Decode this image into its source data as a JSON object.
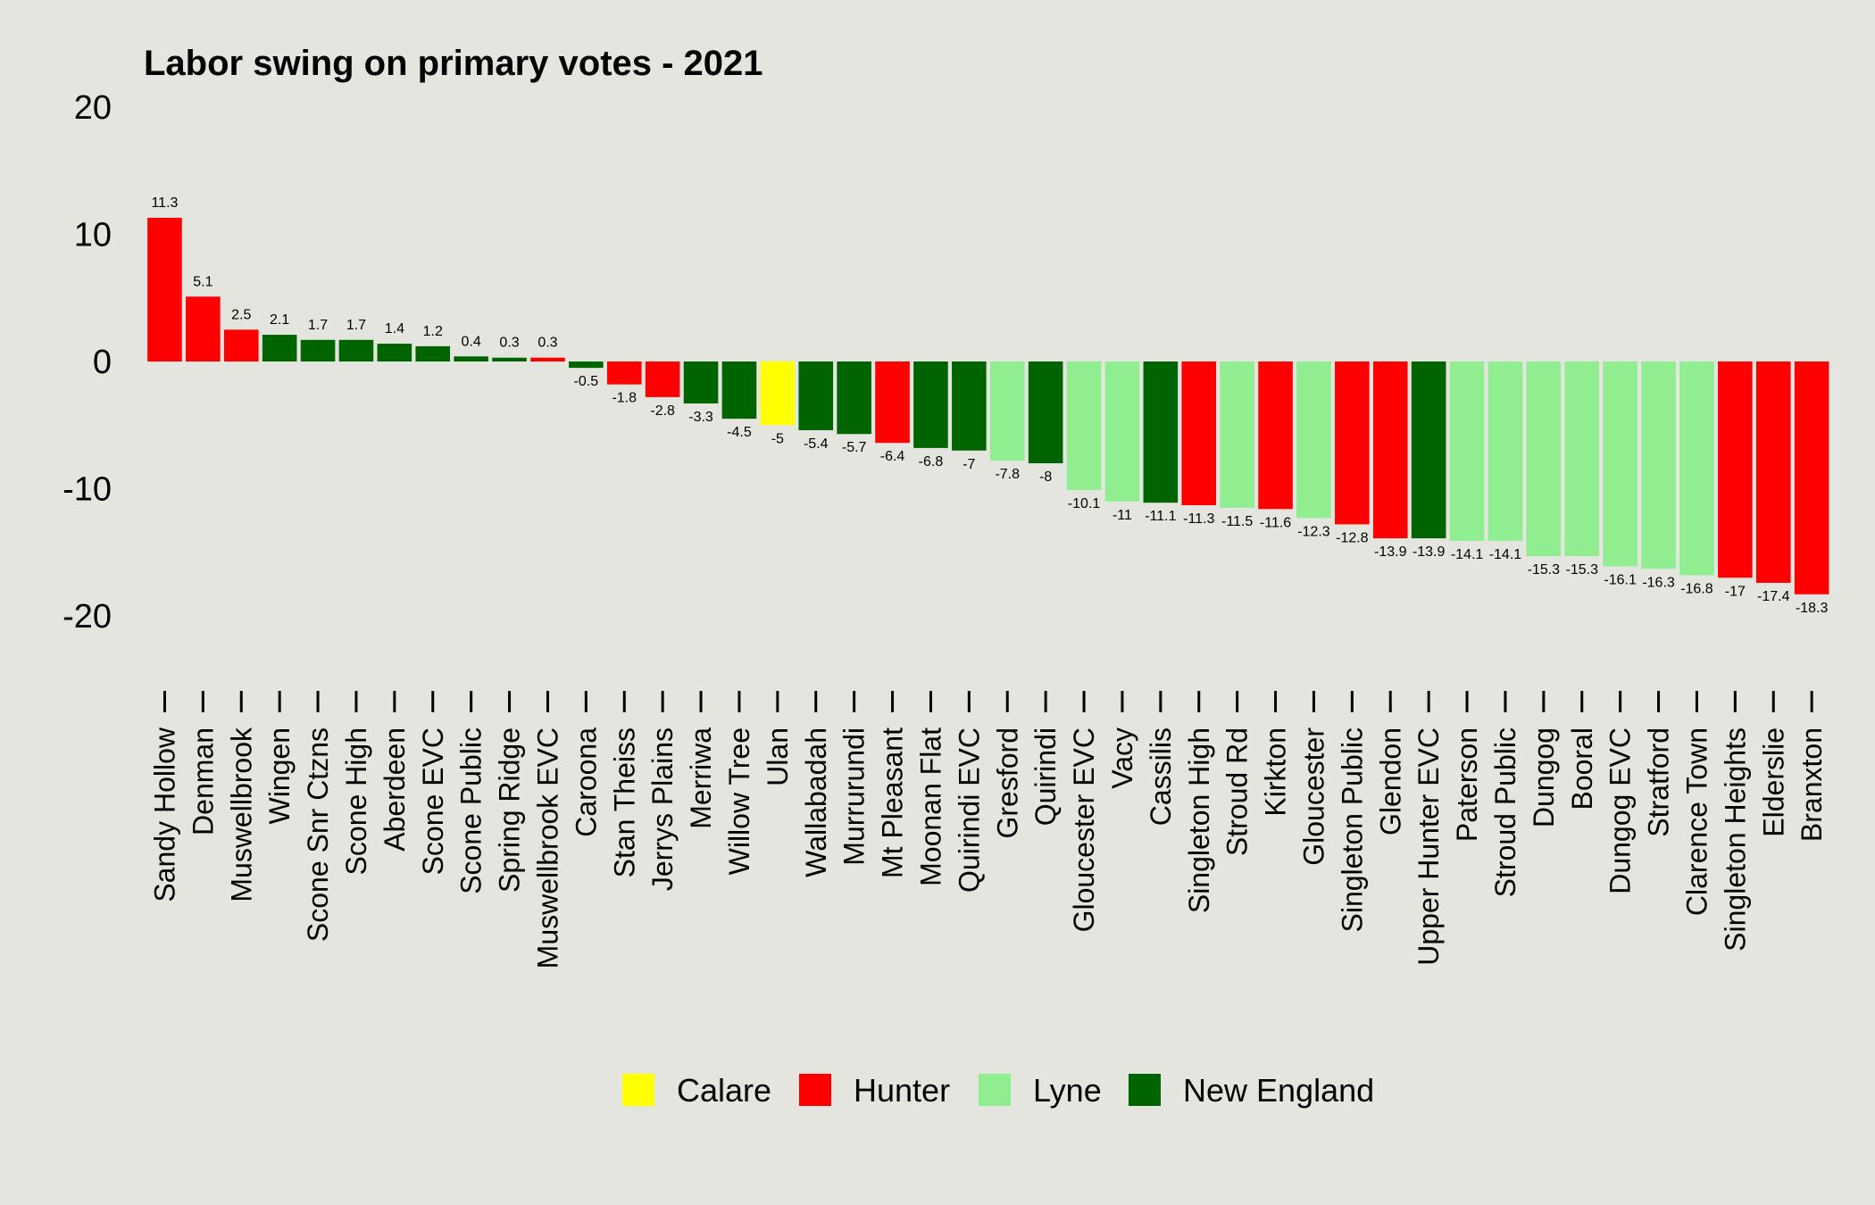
{
  "chart_data": {
    "type": "bar",
    "title": "Labor swing on primary votes - 2021",
    "xlabel": "",
    "ylabel": "",
    "ylim": [
      -25,
      20
    ],
    "yticks": [
      20,
      10,
      0,
      -10,
      -20
    ],
    "grid": false,
    "legend_position": "bottom",
    "legend": [
      {
        "name": "Calare",
        "color": "#ffff00"
      },
      {
        "name": "Hunter",
        "color": "#ff0000"
      },
      {
        "name": "Lyne",
        "color": "#90ee90"
      },
      {
        "name": "New England",
        "color": "#006400"
      }
    ],
    "categories": [
      "Sandy Hollow",
      "Denman",
      "Muswellbrook",
      "Wingen",
      "Scone Snr Ctzns",
      "Scone High",
      "Aberdeen",
      "Scone EVC",
      "Scone Public",
      "Spring Ridge",
      "Muswellbrook EVC",
      "Caroona",
      "Stan Theiss",
      "Jerrys Plains",
      "Merriwa",
      "Willow Tree",
      "Ulan",
      "Wallabadah",
      "Murrurundi",
      "Mt Pleasant",
      "Moonan Flat",
      "Quirindi EVC",
      "Gresford",
      "Quirindi",
      "Gloucester EVC",
      "Vacy",
      "Cassilis",
      "Singleton High",
      "Stroud Rd",
      "Kirkton",
      "Gloucester",
      "Singleton Public",
      "Glendon",
      "Upper Hunter EVC",
      "Paterson",
      "Stroud Public",
      "Dungog",
      "Booral",
      "Dungog EVC",
      "Stratford",
      "Clarence Town",
      "Singleton Heights",
      "Elderslie",
      "Branxton"
    ],
    "values": [
      11.3,
      5.1,
      2.5,
      2.1,
      1.7,
      1.7,
      1.4,
      1.2,
      0.4,
      0.3,
      0.3,
      -0.5,
      -1.8,
      -2.8,
      -3.3,
      -4.5,
      -5,
      -5.4,
      -5.7,
      -6.4,
      -6.8,
      -7,
      -7.8,
      -8,
      -10.1,
      -11,
      -11.1,
      -11.3,
      -11.5,
      -11.6,
      -12.3,
      -12.8,
      -13.9,
      -13.9,
      -14.1,
      -14.1,
      -15.3,
      -15.3,
      -16.1,
      -16.3,
      -16.8,
      -17,
      -17.4,
      -18.3
    ],
    "electorates": [
      "Hunter",
      "Hunter",
      "Hunter",
      "New England",
      "New England",
      "New England",
      "New England",
      "New England",
      "New England",
      "New England",
      "Hunter",
      "New England",
      "Hunter",
      "Hunter",
      "New England",
      "New England",
      "Calare",
      "New England",
      "New England",
      "Hunter",
      "New England",
      "New England",
      "Lyne",
      "New England",
      "Lyne",
      "Lyne",
      "New England",
      "Hunter",
      "Lyne",
      "Hunter",
      "Lyne",
      "Hunter",
      "Hunter",
      "New England",
      "Lyne",
      "Lyne",
      "Lyne",
      "Lyne",
      "Lyne",
      "Lyne",
      "Lyne",
      "Hunter",
      "Hunter",
      "Hunter"
    ]
  }
}
